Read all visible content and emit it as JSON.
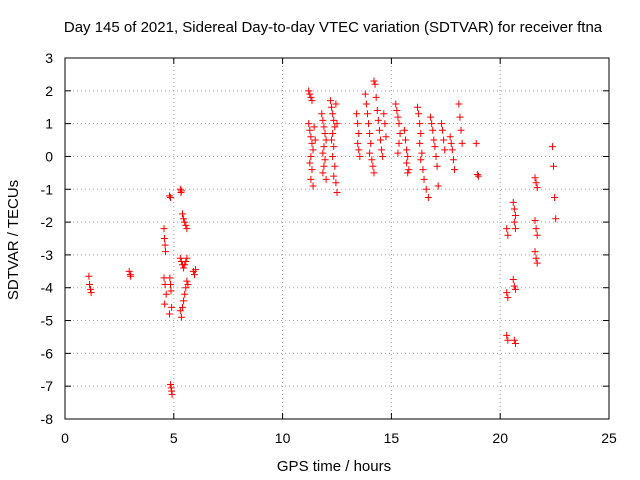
{
  "chart_data": {
    "type": "scatter",
    "title": "Day 145 of 2021, Sidereal Day-to-day VTEC variation (SDTVAR) for receiver ftna",
    "xlabel": "GPS time / hours",
    "ylabel": "SDTVAR / TECUs",
    "xlim": [
      0,
      25
    ],
    "ylim": [
      -8,
      3
    ],
    "xticks": [
      0,
      5,
      10,
      15,
      20,
      25
    ],
    "yticks": [
      -8,
      -7,
      -6,
      -5,
      -4,
      -3,
      -2,
      -1,
      0,
      1,
      2,
      3
    ],
    "grid": true,
    "marker": "+",
    "color": "#ff0000",
    "series": [
      {
        "name": "SDTVAR",
        "points": [
          [
            1.1,
            -3.65
          ],
          [
            1.13,
            -3.9
          ],
          [
            1.17,
            -4.05
          ],
          [
            1.2,
            -4.15
          ],
          [
            2.95,
            -3.5
          ],
          [
            3.0,
            -3.6
          ],
          [
            3.02,
            -3.65
          ],
          [
            4.55,
            -2.2
          ],
          [
            4.57,
            -2.5
          ],
          [
            4.6,
            -2.7
          ],
          [
            4.62,
            -2.9
          ],
          [
            4.55,
            -3.7
          ],
          [
            4.6,
            -3.9
          ],
          [
            4.58,
            -4.5
          ],
          [
            4.65,
            -4.2
          ],
          [
            4.8,
            -1.2
          ],
          [
            4.85,
            -1.25
          ],
          [
            4.82,
            -3.7
          ],
          [
            4.85,
            -3.9
          ],
          [
            4.87,
            -4.1
          ],
          [
            4.9,
            -4.6
          ],
          [
            4.8,
            -4.8
          ],
          [
            4.85,
            -6.95
          ],
          [
            4.88,
            -7.05
          ],
          [
            4.9,
            -7.15
          ],
          [
            4.92,
            -7.25
          ],
          [
            5.3,
            -1.0
          ],
          [
            5.33,
            -1.1
          ],
          [
            5.35,
            -1.05
          ],
          [
            5.4,
            -1.75
          ],
          [
            5.45,
            -1.9
          ],
          [
            5.5,
            -2.0
          ],
          [
            5.55,
            -2.1
          ],
          [
            5.6,
            -2.2
          ],
          [
            5.3,
            -3.1
          ],
          [
            5.35,
            -3.2
          ],
          [
            5.4,
            -3.3
          ],
          [
            5.45,
            -3.4
          ],
          [
            5.5,
            -3.3
          ],
          [
            5.55,
            -3.2
          ],
          [
            5.6,
            -3.1
          ],
          [
            5.3,
            -4.7
          ],
          [
            5.35,
            -4.9
          ],
          [
            5.4,
            -4.6
          ],
          [
            5.45,
            -4.4
          ],
          [
            5.5,
            -4.2
          ],
          [
            5.55,
            -4.0
          ],
          [
            5.6,
            -3.8
          ],
          [
            5.65,
            -3.9
          ],
          [
            5.9,
            -3.5
          ],
          [
            5.95,
            -3.6
          ],
          [
            6.0,
            -3.45
          ],
          [
            11.2,
            2.0
          ],
          [
            11.25,
            1.9
          ],
          [
            11.3,
            1.8
          ],
          [
            11.35,
            1.7
          ],
          [
            11.2,
            1.0
          ],
          [
            11.25,
            0.8
          ],
          [
            11.3,
            0.6
          ],
          [
            11.35,
            0.4
          ],
          [
            11.4,
            0.2
          ],
          [
            11.3,
            0.0
          ],
          [
            11.25,
            -0.2
          ],
          [
            11.35,
            -0.4
          ],
          [
            11.3,
            -0.7
          ],
          [
            11.4,
            -0.9
          ],
          [
            11.45,
            0.9
          ],
          [
            11.5,
            0.5
          ],
          [
            11.8,
            1.3
          ],
          [
            11.85,
            1.1
          ],
          [
            11.9,
            0.9
          ],
          [
            11.95,
            0.7
          ],
          [
            12.0,
            0.5
          ],
          [
            11.9,
            0.3
          ],
          [
            11.85,
            0.1
          ],
          [
            11.95,
            -0.1
          ],
          [
            11.9,
            -0.3
          ],
          [
            11.85,
            -0.5
          ],
          [
            12.0,
            -0.7
          ],
          [
            12.2,
            1.7
          ],
          [
            12.25,
            1.5
          ],
          [
            12.3,
            1.3
          ],
          [
            12.35,
            1.1
          ],
          [
            12.4,
            0.9
          ],
          [
            12.3,
            0.7
          ],
          [
            12.25,
            0.5
          ],
          [
            12.35,
            0.3
          ],
          [
            12.3,
            0.0
          ],
          [
            12.4,
            -0.3
          ],
          [
            12.35,
            -0.6
          ],
          [
            12.45,
            -0.8
          ],
          [
            12.5,
            -1.1
          ],
          [
            12.45,
            1.6
          ],
          [
            12.5,
            1.0
          ],
          [
            13.4,
            1.3
          ],
          [
            13.45,
            1.0
          ],
          [
            13.5,
            0.7
          ],
          [
            13.45,
            0.4
          ],
          [
            13.5,
            0.2
          ],
          [
            13.55,
            0.0
          ],
          [
            13.8,
            1.9
          ],
          [
            13.85,
            1.6
          ],
          [
            13.9,
            1.3
          ],
          [
            13.95,
            1.0
          ],
          [
            14.0,
            0.7
          ],
          [
            14.05,
            0.4
          ],
          [
            14.0,
            0.1
          ],
          [
            14.1,
            -0.1
          ],
          [
            14.15,
            -0.3
          ],
          [
            14.2,
            -0.5
          ],
          [
            14.2,
            2.3
          ],
          [
            14.25,
            2.2
          ],
          [
            14.3,
            1.8
          ],
          [
            14.35,
            1.4
          ],
          [
            14.4,
            1.1
          ],
          [
            14.45,
            0.8
          ],
          [
            14.5,
            0.5
          ],
          [
            14.55,
            0.2
          ],
          [
            14.6,
            0.0
          ],
          [
            14.65,
            1.3
          ],
          [
            14.7,
            1.0
          ],
          [
            14.75,
            0.6
          ],
          [
            15.2,
            1.6
          ],
          [
            15.25,
            1.4
          ],
          [
            15.3,
            1.2
          ],
          [
            15.35,
            1.0
          ],
          [
            15.4,
            0.7
          ],
          [
            15.35,
            0.4
          ],
          [
            15.3,
            0.1
          ],
          [
            15.6,
            0.8
          ],
          [
            15.65,
            0.5
          ],
          [
            15.7,
            0.2
          ],
          [
            15.75,
            0.0
          ],
          [
            15.7,
            -0.2
          ],
          [
            15.8,
            -0.4
          ],
          [
            15.75,
            -0.5
          ],
          [
            16.2,
            1.5
          ],
          [
            16.25,
            1.3
          ],
          [
            16.3,
            1.0
          ],
          [
            16.35,
            0.7
          ],
          [
            16.3,
            0.4
          ],
          [
            16.4,
            0.1
          ],
          [
            16.35,
            -0.1
          ],
          [
            16.45,
            -0.4
          ],
          [
            16.5,
            -0.7
          ],
          [
            16.6,
            -1.0
          ],
          [
            16.7,
            -1.25
          ],
          [
            16.8,
            1.2
          ],
          [
            16.85,
            1.0
          ],
          [
            16.9,
            0.8
          ],
          [
            16.95,
            0.5
          ],
          [
            17.0,
            0.3
          ],
          [
            17.05,
            0.0
          ],
          [
            17.1,
            -0.3
          ],
          [
            17.15,
            -0.9
          ],
          [
            17.3,
            1.0
          ],
          [
            17.35,
            0.8
          ],
          [
            17.4,
            0.5
          ],
          [
            17.45,
            0.2
          ],
          [
            17.7,
            0.6
          ],
          [
            17.75,
            0.4
          ],
          [
            17.8,
            0.2
          ],
          [
            17.85,
            -0.1
          ],
          [
            17.9,
            -0.4
          ],
          [
            18.1,
            1.6
          ],
          [
            18.15,
            1.2
          ],
          [
            18.2,
            0.8
          ],
          [
            18.25,
            0.4
          ],
          [
            18.9,
            0.4
          ],
          [
            18.95,
            -0.55
          ],
          [
            19.0,
            -0.6
          ],
          [
            20.3,
            -2.2
          ],
          [
            20.35,
            -2.4
          ],
          [
            20.3,
            -4.15
          ],
          [
            20.35,
            -4.3
          ],
          [
            20.3,
            -5.45
          ],
          [
            20.35,
            -5.6
          ],
          [
            20.6,
            -1.4
          ],
          [
            20.65,
            -1.6
          ],
          [
            20.7,
            -1.8
          ],
          [
            20.65,
            -2.0
          ],
          [
            20.7,
            -2.2
          ],
          [
            20.6,
            -3.75
          ],
          [
            20.65,
            -3.95
          ],
          [
            20.7,
            -4.05
          ],
          [
            20.65,
            -5.6
          ],
          [
            20.7,
            -5.7
          ],
          [
            21.6,
            -0.65
          ],
          [
            21.65,
            -0.8
          ],
          [
            21.7,
            -0.95
          ],
          [
            21.6,
            -1.95
          ],
          [
            21.65,
            -2.2
          ],
          [
            21.7,
            -2.4
          ],
          [
            21.6,
            -2.9
          ],
          [
            21.65,
            -3.1
          ],
          [
            21.7,
            -3.25
          ],
          [
            22.4,
            0.3
          ],
          [
            22.45,
            -0.3
          ],
          [
            22.5,
            -1.25
          ],
          [
            22.55,
            -1.9
          ]
        ]
      }
    ]
  }
}
